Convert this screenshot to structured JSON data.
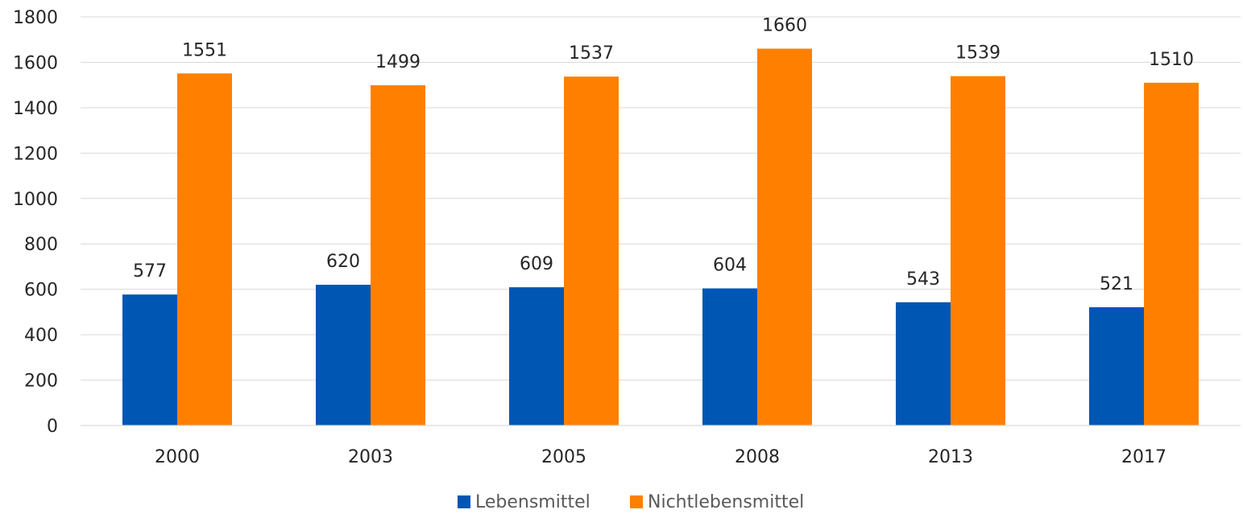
{
  "chart_data": {
    "type": "bar",
    "categories": [
      "2000",
      "2003",
      "2005",
      "2008",
      "2013",
      "2017"
    ],
    "series": [
      {
        "name": "Lebensmittel",
        "color": "#0056b3",
        "values": [
          577,
          620,
          609,
          604,
          543,
          521
        ]
      },
      {
        "name": "Nichtlebensmittel",
        "color": "#ff8000",
        "values": [
          1551,
          1499,
          1537,
          1660,
          1539,
          1510
        ]
      }
    ],
    "ylim": [
      0,
      1800
    ],
    "yticks": [
      0,
      200,
      400,
      600,
      800,
      1000,
      1200,
      1400,
      1600,
      1800
    ],
    "grid": true,
    "legend_position": "bottom",
    "title": "",
    "xlabel": "",
    "ylabel": ""
  }
}
